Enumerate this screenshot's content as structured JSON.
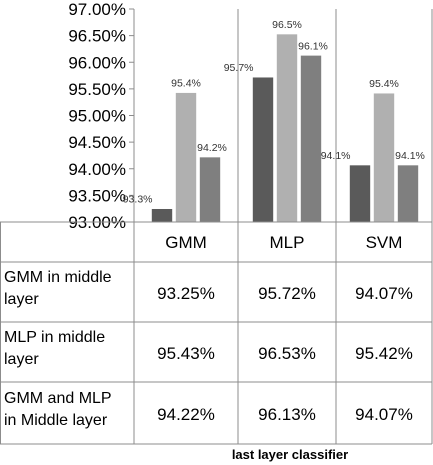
{
  "chart_data": {
    "type": "bar",
    "categories": [
      "GMM",
      "MLP",
      "SVM"
    ],
    "xlabel": "last layer classifier",
    "ylim": [
      93.0,
      97.0
    ],
    "yticks": [
      "97.00%",
      "96.50%",
      "96.00%",
      "95.50%",
      "95.00%",
      "94.50%",
      "94.00%",
      "93.50%",
      "93.00%"
    ],
    "series": [
      {
        "name": "GMM in middle layer",
        "name_lines": [
          "GMM in middle",
          "layer"
        ],
        "color": "#5a5a5a",
        "values": [
          93.25,
          95.72,
          94.07
        ],
        "labels": [
          "93.3%",
          "95.7%",
          "94.1%"
        ]
      },
      {
        "name": "MLP in middle layer",
        "name_lines": [
          "MLP in middle",
          "layer"
        ],
        "color": "#b0b0b0",
        "values": [
          95.43,
          96.53,
          95.42
        ],
        "labels": [
          "95.4%",
          "96.5%",
          "95.4%"
        ]
      },
      {
        "name": "GMM and MLP in Middle layer",
        "name_lines": [
          "GMM and MLP",
          "in Middle layer"
        ],
        "color": "#7f7f7f",
        "values": [
          94.22,
          96.13,
          94.07
        ],
        "labels": [
          "94.2%",
          "96.1%",
          "94.1%"
        ]
      }
    ],
    "table": [
      [
        "93.25%",
        "95.72%",
        "94.07%"
      ],
      [
        "95.43%",
        "96.53%",
        "95.42%"
      ],
      [
        "94.22%",
        "96.13%",
        "94.07%"
      ]
    ]
  }
}
